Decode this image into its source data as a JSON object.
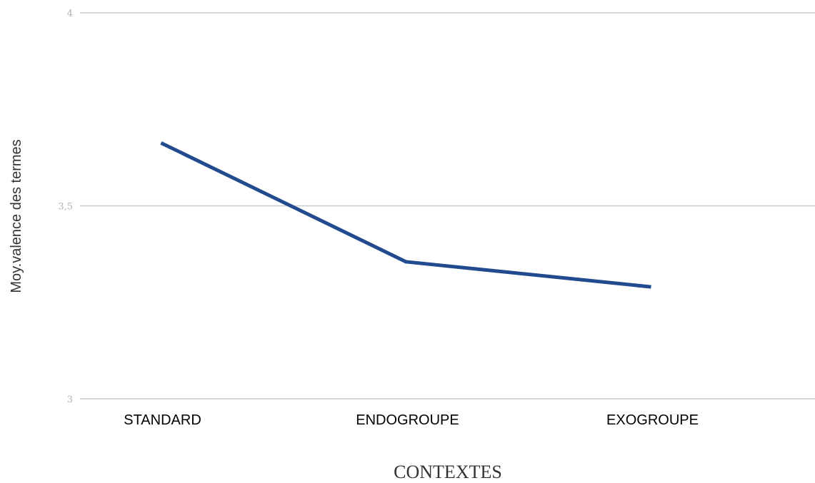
{
  "chart_data": {
    "type": "line",
    "categories": [
      "STANDARD",
      "ENDOGROUPE",
      "EXOGROUPE"
    ],
    "series": [
      {
        "values": [
          3.663,
          3.355,
          3.29
        ]
      }
    ],
    "xlabel": "CONTEXTES",
    "ylabel": "Moy.valence des termes",
    "ylim": [
      3,
      4
    ],
    "yticks": [
      {
        "value": 3,
        "label": "3"
      },
      {
        "value": 3.5,
        "label": "3,5"
      },
      {
        "value": 4,
        "label": "4"
      }
    ],
    "grid": true,
    "legend": "none",
    "colors": {
      "line": "#224a8f",
      "grid": "#cccccc",
      "ytick": "#b3b3b3"
    }
  }
}
